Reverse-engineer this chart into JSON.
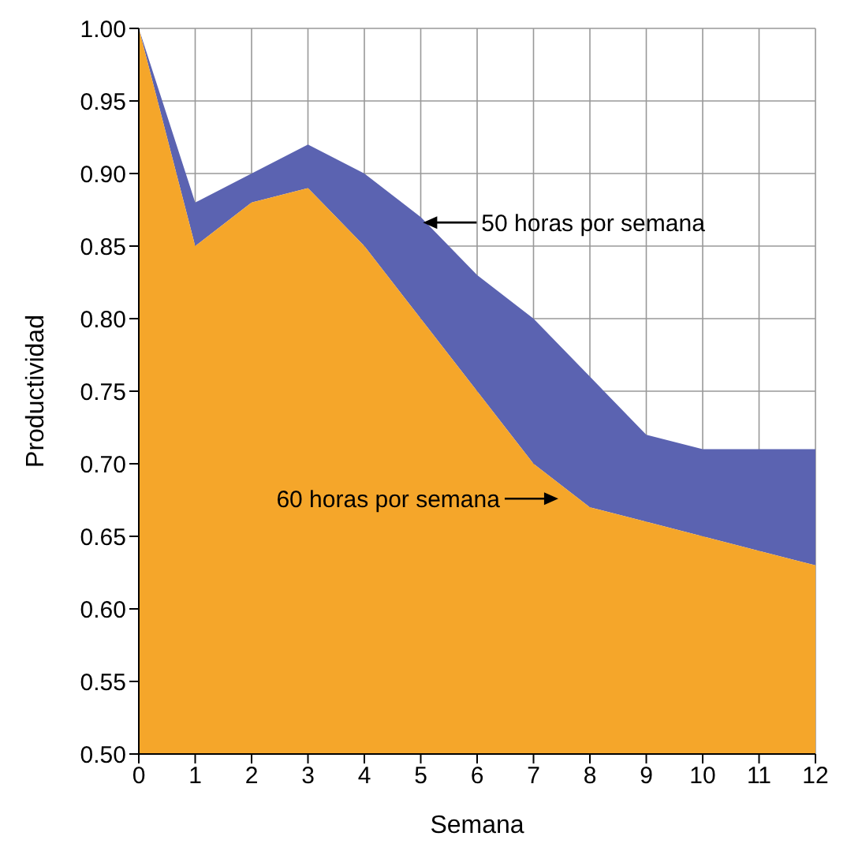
{
  "chart_data": {
    "type": "area",
    "xlabel": "Semana",
    "ylabel": "Productividad",
    "x": [
      0,
      1,
      2,
      3,
      4,
      5,
      6,
      7,
      8,
      9,
      10,
      11,
      12
    ],
    "series": [
      {
        "name": "50 horas por semana",
        "color": "#5b63b1",
        "values": [
          1.0,
          0.88,
          0.9,
          0.92,
          0.9,
          0.87,
          0.83,
          0.8,
          0.76,
          0.72,
          0.71,
          0.71,
          0.71
        ]
      },
      {
        "name": "60 horas por semana",
        "color": "#f5a62a",
        "values": [
          1.0,
          0.85,
          0.88,
          0.89,
          0.85,
          0.8,
          0.75,
          0.7,
          0.67,
          0.66,
          0.65,
          0.64,
          0.63
        ]
      }
    ],
    "xlim": [
      0,
      12
    ],
    "xticks": [
      0,
      1,
      2,
      3,
      4,
      5,
      6,
      7,
      8,
      9,
      10,
      11,
      12
    ],
    "ylim": [
      0.5,
      1.0
    ],
    "yticks": [
      {
        "value": 0.5,
        "label": "0.50"
      },
      {
        "value": 0.55,
        "label": "0.55"
      },
      {
        "value": 0.6,
        "label": "0.60"
      },
      {
        "value": 0.65,
        "label": "0.65"
      },
      {
        "value": 0.7,
        "label": "0.70"
      },
      {
        "value": 0.75,
        "label": "0.75"
      },
      {
        "value": 0.8,
        "label": "0.80"
      },
      {
        "value": 0.85,
        "label": "0.85"
      },
      {
        "value": 0.9,
        "label": "0.90"
      },
      {
        "value": 0.95,
        "label": "0.95"
      },
      {
        "value": 1.0,
        "label": "1.00"
      }
    ],
    "grid": true
  }
}
